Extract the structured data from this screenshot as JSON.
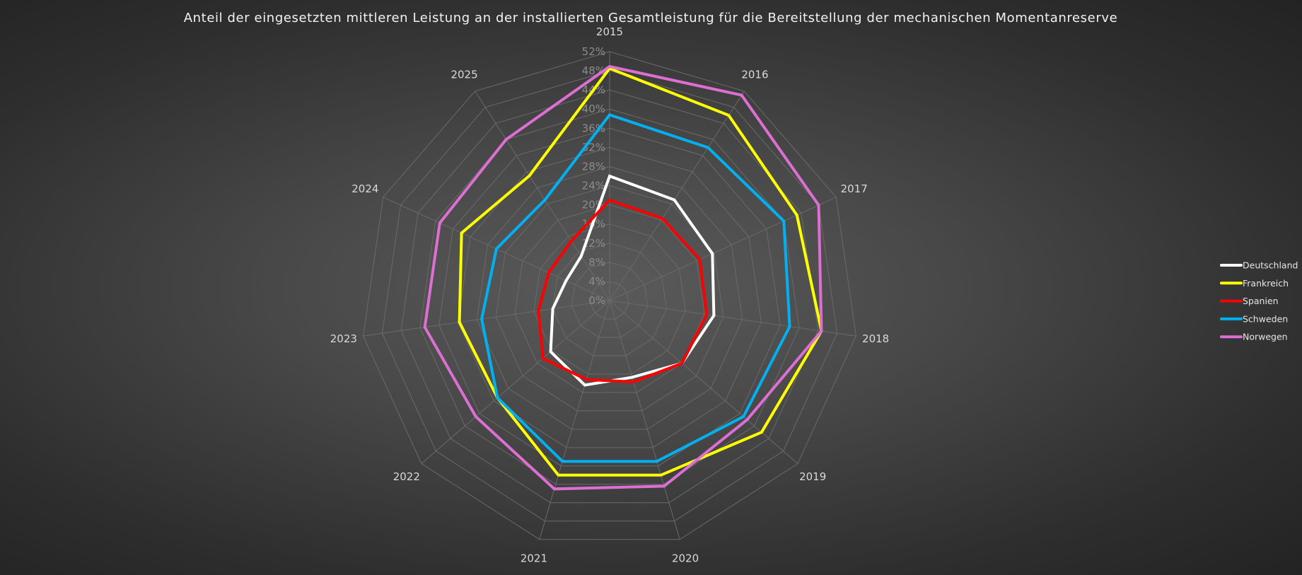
{
  "chart_data": {
    "type": "radar",
    "title": "Anteil der eingesetzten mittleren Leistung an der installierten Gesamtleistung für die Bereitstellung der mechanischen Momentanreserve",
    "categories": [
      "2015",
      "2016",
      "2017",
      "2018",
      "2019",
      "2020",
      "2021",
      "2022",
      "2023",
      "2024",
      "2025"
    ],
    "rlim": [
      0,
      52
    ],
    "ticks": [
      0,
      4,
      8,
      12,
      16,
      20,
      24,
      28,
      32,
      36,
      40,
      44,
      48,
      52
    ],
    "tick_labels": [
      "0%",
      "4%",
      "8%",
      "12%",
      "16%",
      "20%",
      "24%",
      "28%",
      "32%",
      "36%",
      "40%",
      "44%",
      "48%",
      "52%"
    ],
    "grid": true,
    "legend_position": "right",
    "series": [
      {
        "name": "Deutschland",
        "color": "#ffffff",
        "values": [
          26,
          25,
          23.6,
          22,
          20,
          16.7,
          18.4,
          16.3,
          12,
          10,
          11
        ]
      },
      {
        "name": "Frankreich",
        "color": "#ffff00",
        "values": [
          48.5,
          46,
          43,
          44.7,
          42,
          38,
          38,
          31,
          31.7,
          34,
          31
        ]
      },
      {
        "name": "Spanien",
        "color": "#ff0000",
        "values": [
          21,
          20.4,
          20.7,
          20.5,
          20,
          17.7,
          17.2,
          18.4,
          15,
          14,
          14.8
        ]
      },
      {
        "name": "Schweden",
        "color": "#00b0f0",
        "values": [
          38.8,
          38,
          40,
          38,
          37,
          35,
          35,
          31,
          27,
          26,
          25
        ]
      },
      {
        "name": "Norwegen",
        "color": "#dd6fd3",
        "values": [
          48.9,
          51,
          48,
          44.7,
          38,
          40.4,
          41,
          37,
          39,
          39,
          40
        ]
      }
    ]
  }
}
